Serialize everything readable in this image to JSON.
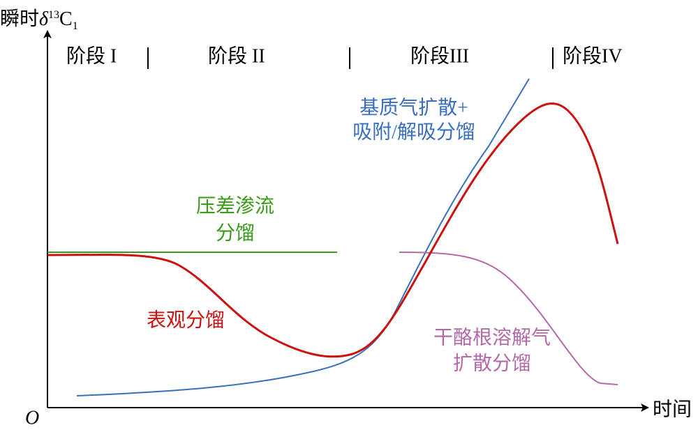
{
  "axes": {
    "y_label": {
      "prefix": "瞬时",
      "symbol": "δ",
      "sup": "13",
      "main": "C",
      "sub": "1"
    },
    "x_label": "时间",
    "origin": "O"
  },
  "stages": [
    "阶段 I",
    "阶段 II",
    "阶段III",
    "阶段IV"
  ],
  "curves": [
    {
      "label": [
        "压差渗流",
        "分馏"
      ]
    },
    {
      "label": [
        "表观分馏"
      ]
    },
    {
      "label": [
        "基质气扩散+",
        "吸附/解吸分馏"
      ]
    },
    {
      "label": [
        "干酪根溶解气",
        "扩散分馏"
      ]
    }
  ]
}
